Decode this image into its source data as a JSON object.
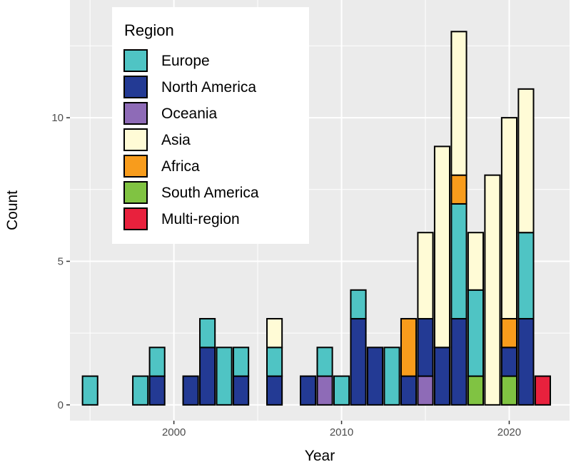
{
  "chart_data": {
    "type": "bar",
    "stacked": true,
    "xlabel": "Year",
    "ylabel": "Count",
    "xlim": [
      1993.8,
      2023.6
    ],
    "ylim": [
      -0.55,
      14.1
    ],
    "x_ticks": [
      2000,
      2010,
      2020
    ],
    "y_ticks": [
      0,
      5,
      10
    ],
    "legend_title": "Region",
    "legend_position": "top-left",
    "stack_order": [
      "Multi-region",
      "South America",
      "Oceania",
      "North America",
      "Europe",
      "Africa",
      "Asia"
    ],
    "series": [
      {
        "name": "Europe",
        "color": "#4FC4C4",
        "data": {
          "1995": 1,
          "1998": 1,
          "1999": 1,
          "2002": 1,
          "2003": 2,
          "2004": 1,
          "2006": 1,
          "2009": 1,
          "2010": 1,
          "2011": 1,
          "2013": 2,
          "2017": 4,
          "2018": 3,
          "2021": 3
        }
      },
      {
        "name": "North America",
        "color": "#233A94",
        "data": {
          "1999": 1,
          "2001": 1,
          "2002": 2,
          "2004": 1,
          "2006": 1,
          "2008": 1,
          "2011": 3,
          "2012": 2,
          "2014": 1,
          "2015": 2,
          "2016": 2,
          "2017": 3,
          "2020": 1,
          "2021": 3
        }
      },
      {
        "name": "Oceania",
        "color": "#8E6BB7",
        "data": {
          "2009": 1,
          "2015": 1
        }
      },
      {
        "name": "Asia",
        "color": "#FFFBD6",
        "data": {
          "2006": 1,
          "2015": 3,
          "2016": 7,
          "2017": 5,
          "2018": 2,
          "2019": 8,
          "2020": 7,
          "2021": 5
        }
      },
      {
        "name": "Africa",
        "color": "#F89C1C",
        "data": {
          "2014": 2,
          "2017": 1,
          "2020": 1
        }
      },
      {
        "name": "South America",
        "color": "#80C342",
        "data": {
          "2018": 1,
          "2020": 1
        }
      },
      {
        "name": "Multi-region",
        "color": "#E8213D",
        "data": {
          "2022": 1
        }
      }
    ]
  }
}
